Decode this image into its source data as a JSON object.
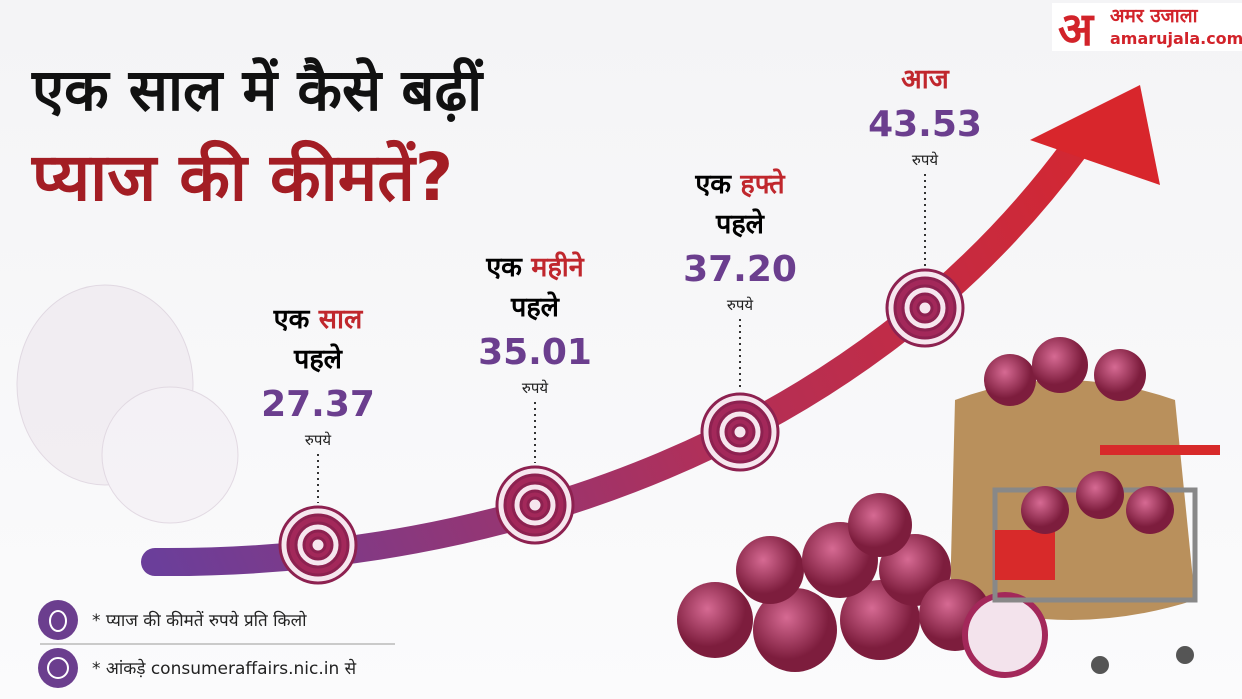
{
  "header": {
    "title_line1": "एक साल में कैसे बढ़ीं",
    "title_line2": "प्याज की कीमतें?"
  },
  "logo": {
    "mark": "अ",
    "name": "अमर उजाला",
    "site": "amarujala.com"
  },
  "points": [
    {
      "label_black": "एक",
      "label_red": "साल",
      "label_line2": "पहले",
      "price": "27.37",
      "unit": "रुपये"
    },
    {
      "label_black": "एक",
      "label_red": "महीने",
      "label_line2": "पहले",
      "price": "35.01",
      "unit": "रुपये"
    },
    {
      "label_black": "एक",
      "label_red": "हफ्ते",
      "label_line2": "पहले",
      "price": "37.20",
      "unit": "रुपये"
    },
    {
      "label_red": "आज",
      "price": "43.53",
      "unit": "रुपये"
    }
  ],
  "footnotes": [
    "* प्याज की कीमतें रुपये प्रति किलो",
    "* आंकड़े consumeraffairs.nic.in से"
  ]
}
